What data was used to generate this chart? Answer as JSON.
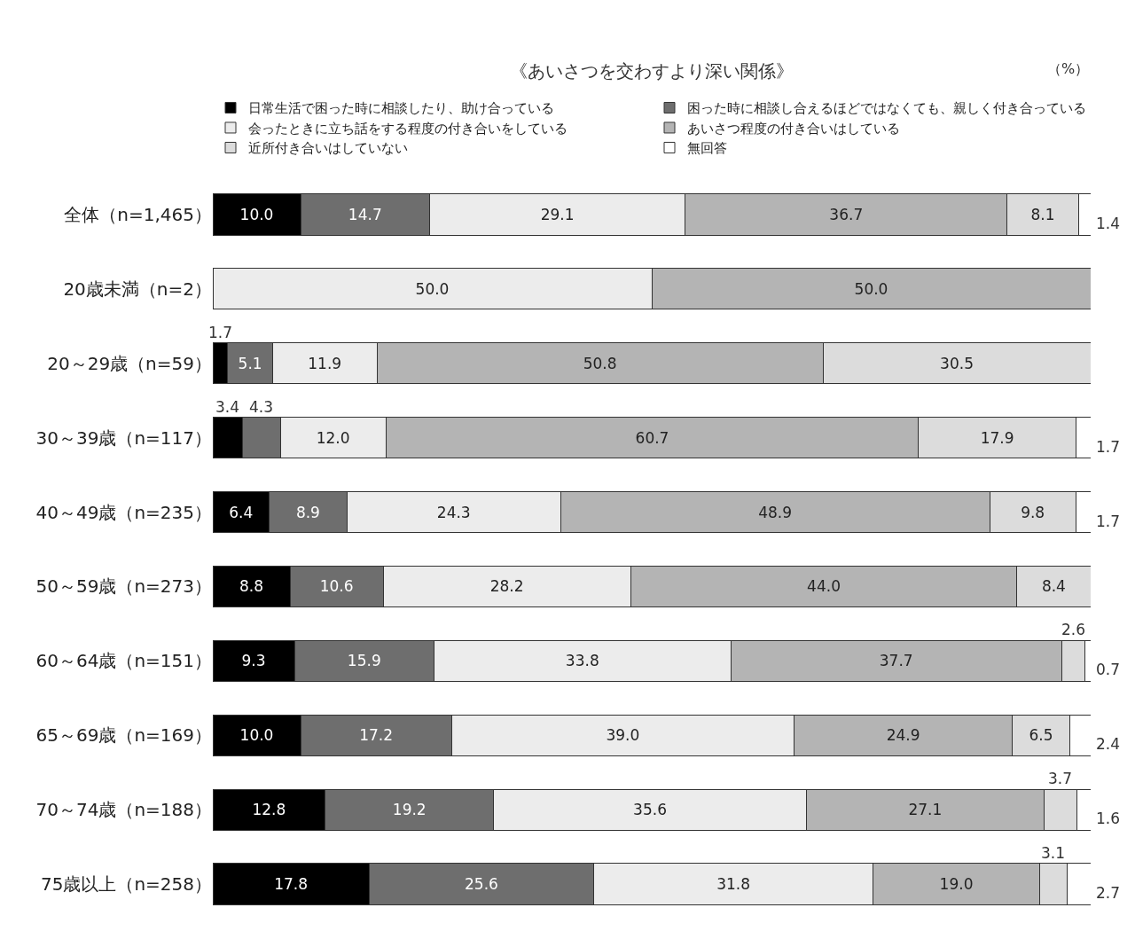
{
  "chart_data": {
    "type": "bar",
    "orientation": "horizontal",
    "stacked": true,
    "legend": "top",
    "grid": false,
    "categories": [
      "全体（n=1,465）",
      "20歳未満（n=2）",
      "20～29歳（n=59）",
      "30～39歳（n=117）",
      "40～49歳（n=235）",
      "50～59歳（n=273）",
      "60～64歳（n=151）",
      "65～69歳（n=169）",
      "70～74歳（n=188）",
      "75歳以上（n=258）"
    ],
    "series": [
      {
        "name": "日常生活で困った時に相談したり、助け合っている",
        "color": "#000000",
        "values": [
          10.0,
          null,
          1.7,
          3.4,
          6.4,
          8.8,
          9.3,
          10.0,
          12.8,
          17.8
        ],
        "value_labels": [
          "10.0",
          null,
          "1.7",
          "3.4",
          "6.4",
          "8.8",
          "9.3",
          "10.0",
          "12.8",
          "17.8"
        ]
      },
      {
        "name": "困った時に相談し合えるほどではなくても、親しく付き合っている",
        "color": "#6e6e6e",
        "values": [
          14.7,
          null,
          5.1,
          4.3,
          8.9,
          10.6,
          15.9,
          17.2,
          19.2,
          25.6
        ],
        "value_labels": [
          "14.7",
          null,
          "5.1",
          "4.3",
          "8.9",
          "10.6",
          "15.9",
          "17.2",
          "19.2",
          "25.6"
        ]
      },
      {
        "name": "会ったときに立ち話をする程度の付き合いをしている",
        "color": "#ececec",
        "values": [
          29.1,
          50.0,
          11.9,
          12.0,
          24.3,
          28.2,
          33.8,
          39.0,
          35.6,
          31.8
        ],
        "value_labels": [
          "29.1",
          "50.0",
          "11.9",
          "12.0",
          "24.3",
          "28.2",
          "33.8",
          "39.0",
          "35.6",
          "31.8"
        ]
      },
      {
        "name": "あいさつ程度の付き合いはしている",
        "color": "#b4b4b4",
        "values": [
          36.7,
          50.0,
          50.8,
          60.7,
          48.9,
          44.0,
          37.7,
          24.9,
          27.1,
          19.0
        ],
        "value_labels": [
          "36.7",
          "50.0",
          "50.8",
          "60.7",
          "48.9",
          "44.0",
          "37.7",
          "24.9",
          "27.1",
          "19.0"
        ]
      },
      {
        "name": "近所付き合いはしていない",
        "color": "#dcdcdc",
        "values": [
          8.1,
          null,
          30.5,
          17.9,
          9.8,
          8.4,
          2.6,
          6.5,
          3.7,
          3.1
        ],
        "value_labels": [
          "8.1",
          null,
          "30.5",
          "17.9",
          "9.8",
          "8.4",
          "2.6",
          "6.5",
          "3.7",
          "3.1"
        ]
      },
      {
        "name": "無回答",
        "color": "#ffffff",
        "values": [
          1.4,
          null,
          null,
          1.7,
          1.7,
          null,
          0.7,
          2.4,
          1.6,
          2.7
        ],
        "value_labels": [
          "1.4",
          null,
          null,
          "1.7",
          "1.7",
          null,
          "0.7",
          "2.4",
          "1.6",
          "2.7"
        ]
      }
    ],
    "annotations": [
      "《あいさつを交わすより深い関係》",
      "（%）"
    ]
  }
}
